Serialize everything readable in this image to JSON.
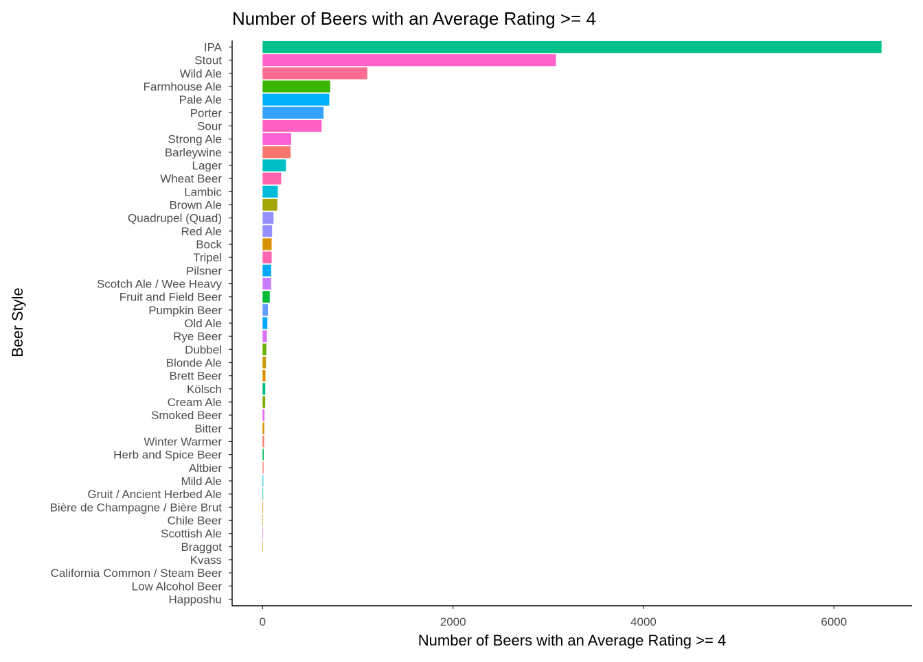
{
  "chart_data": {
    "type": "bar",
    "orientation": "horizontal",
    "title": "Number of Beers with an Average Rating >= 4",
    "xlabel": "Number of Beers with an Average Rating >= 4",
    "ylabel": "Beer Style",
    "xlim": [
      -320,
      6820
    ],
    "xticks": [
      0,
      2000,
      4000,
      6000
    ],
    "grid": false,
    "legend": "none",
    "categories": [
      "IPA",
      "Stout",
      "Wild Ale",
      "Farmhouse Ale",
      "Pale Ale",
      "Porter",
      "Sour",
      "Strong Ale",
      "Barleywine",
      "Lager",
      "Wheat Beer",
      "Lambic",
      "Brown Ale",
      "Quadrupel (Quad)",
      "Red Ale",
      "Bock",
      "Tripel",
      "Pilsner",
      "Scotch Ale / Wee Heavy",
      "Fruit and Field Beer",
      "Pumpkin Beer",
      "Old Ale",
      "Rye Beer",
      "Dubbel",
      "Blonde Ale",
      "Brett Beer",
      "Kölsch",
      "Cream Ale",
      "Smoked Beer",
      "Bitter",
      "Winter Warmer",
      "Herb and Spice Beer",
      "Altbier",
      "Mild Ale",
      "Gruit / Ancient Herbed Ale",
      "Bière de Champagne / Bière Brut",
      "Chile Beer",
      "Scottish Ale",
      "Braggot",
      "Kvass",
      "California Common / Steam Beer",
      "Low Alcohol Beer",
      "Happoshu"
    ],
    "values": [
      6500,
      3080,
      1100,
      710,
      700,
      640,
      620,
      300,
      295,
      245,
      195,
      160,
      155,
      115,
      100,
      95,
      95,
      90,
      90,
      75,
      55,
      50,
      45,
      40,
      35,
      30,
      28,
      27,
      20,
      18,
      16,
      12,
      10,
      7,
      6,
      5,
      4,
      3,
      2,
      0,
      0,
      0,
      0
    ],
    "colors": [
      "#00C08B",
      "#FF61C9",
      "#FF6C91",
      "#39B600",
      "#00B0F6",
      "#35A2FF",
      "#FF61C3",
      "#FC61D5",
      "#F8766D",
      "#00BFC4",
      "#FF64B0",
      "#00BCD8",
      "#A3A500",
      "#9590FF",
      "#9590FF",
      "#D89000",
      "#FF64B0",
      "#00A9FF",
      "#C77CFF",
      "#00BA38",
      "#619CFF",
      "#00A9FF",
      "#DB72FB",
      "#6BB100",
      "#C49A00",
      "#D89000",
      "#00BF7D",
      "#7CAE00",
      "#E76BF3",
      "#D89000",
      "#F8766D",
      "#00BC56",
      "#F8766D",
      "#00BCD8",
      "#00C08B",
      "#E58700",
      "#AEA200",
      "#E76BF3",
      "#BB9D00",
      "#00B81F",
      "#39B600",
      "#C77CFF",
      "#FF6A98"
    ]
  }
}
